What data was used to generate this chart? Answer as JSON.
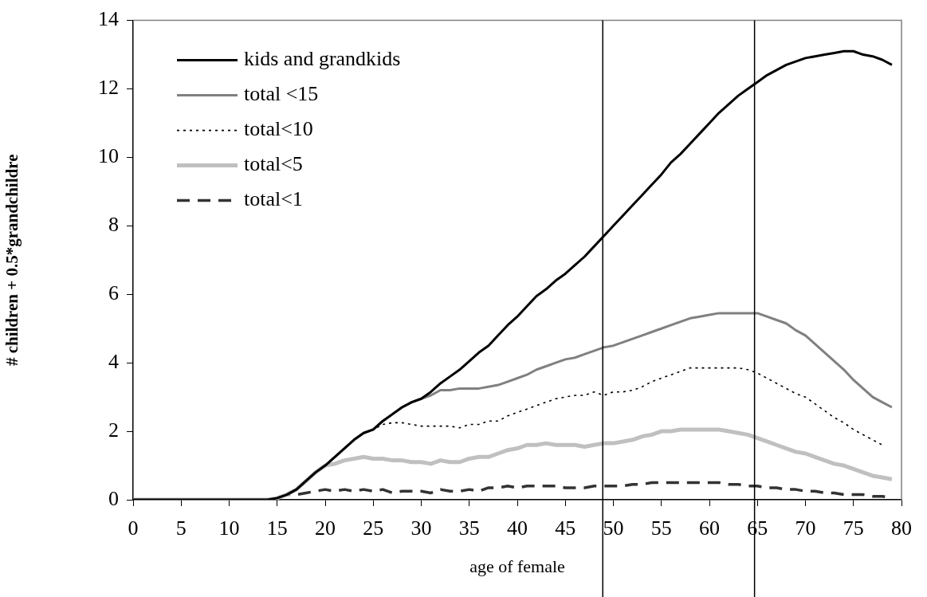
{
  "chart_data": {
    "type": "line",
    "xlabel": "age of female",
    "ylabel": "# children + 0.5*grandchildre",
    "x": [
      0,
      14,
      15,
      16,
      17,
      18,
      19,
      20,
      21,
      22,
      23,
      24,
      25,
      26,
      27,
      28,
      29,
      30,
      31,
      32,
      33,
      34,
      35,
      36,
      37,
      38,
      39,
      40,
      41,
      42,
      43,
      44,
      45,
      46,
      47,
      48,
      49,
      50,
      51,
      52,
      53,
      54,
      55,
      56,
      57,
      58,
      59,
      60,
      61,
      62,
      63,
      64,
      65,
      66,
      67,
      68,
      69,
      70,
      71,
      72,
      73,
      74,
      75,
      76,
      77,
      78,
      79
    ],
    "series": [
      {
        "name": "kids and grandkids",
        "color": "#000000",
        "line_style": "solid",
        "values": [
          0,
          0,
          0.05,
          0.15,
          0.3,
          0.55,
          0.8,
          1.0,
          1.25,
          1.5,
          1.75,
          1.95,
          2.05,
          2.3,
          2.5,
          2.7,
          2.85,
          2.95,
          3.15,
          3.4,
          3.6,
          3.8,
          4.05,
          4.3,
          4.5,
          4.8,
          5.1,
          5.35,
          5.65,
          5.95,
          6.15,
          6.4,
          6.6,
          6.85,
          7.1,
          7.4,
          7.7,
          8.0,
          8.3,
          8.6,
          8.9,
          9.2,
          9.5,
          9.85,
          10.1,
          10.4,
          10.7,
          11.0,
          11.3,
          11.55,
          11.8,
          12.0,
          12.2,
          12.4,
          12.55,
          12.7,
          12.8,
          12.9,
          12.95,
          13.0,
          13.05,
          13.1,
          13.1,
          13.0,
          12.95,
          12.85,
          12.7
        ]
      },
      {
        "name": "total <15",
        "color": "#808080",
        "line_style": "solid",
        "values": [
          0,
          0,
          0.05,
          0.15,
          0.3,
          0.55,
          0.8,
          1.0,
          1.25,
          1.5,
          1.75,
          1.95,
          2.05,
          2.3,
          2.5,
          2.7,
          2.85,
          2.95,
          3.05,
          3.2,
          3.2,
          3.25,
          3.25,
          3.25,
          3.3,
          3.35,
          3.45,
          3.55,
          3.65,
          3.8,
          3.9,
          4.0,
          4.1,
          4.15,
          4.25,
          4.35,
          4.45,
          4.5,
          4.6,
          4.7,
          4.8,
          4.9,
          5.0,
          5.1,
          5.2,
          5.3,
          5.35,
          5.4,
          5.45,
          5.45,
          5.45,
          5.45,
          5.45,
          5.35,
          5.25,
          5.15,
          4.95,
          4.8,
          4.55,
          4.3,
          4.05,
          3.8,
          3.5,
          3.25,
          3.0,
          2.85,
          2.7
        ]
      },
      {
        "name": "total<10",
        "color": "#000000",
        "line_style": "dotted",
        "values": [
          0,
          0,
          0.05,
          0.15,
          0.3,
          0.55,
          0.8,
          1.0,
          1.25,
          1.5,
          1.75,
          1.95,
          2.05,
          2.2,
          2.25,
          2.25,
          2.2,
          2.15,
          2.15,
          2.15,
          2.15,
          2.1,
          2.2,
          2.2,
          2.3,
          2.3,
          2.45,
          2.55,
          2.65,
          2.75,
          2.85,
          2.95,
          3.0,
          3.05,
          3.05,
          3.15,
          3.05,
          3.15,
          3.15,
          3.2,
          3.3,
          3.45,
          3.55,
          3.65,
          3.75,
          3.85,
          3.85,
          3.85,
          3.85,
          3.85,
          3.85,
          3.8,
          3.7,
          3.55,
          3.4,
          3.25,
          3.1,
          3.0,
          2.8,
          2.6,
          2.4,
          2.25,
          2.05,
          1.9,
          1.75,
          1.6,
          null
        ]
      },
      {
        "name": "total<5",
        "color": "#c0c0c0",
        "line_style": "solid",
        "values": [
          0,
          0,
          0.05,
          0.15,
          0.3,
          0.55,
          0.8,
          1.0,
          1.05,
          1.15,
          1.2,
          1.25,
          1.2,
          1.2,
          1.15,
          1.15,
          1.1,
          1.1,
          1.05,
          1.15,
          1.1,
          1.1,
          1.2,
          1.25,
          1.25,
          1.35,
          1.45,
          1.5,
          1.6,
          1.6,
          1.65,
          1.6,
          1.6,
          1.6,
          1.55,
          1.6,
          1.65,
          1.65,
          1.7,
          1.75,
          1.85,
          1.9,
          2.0,
          2.0,
          2.05,
          2.05,
          2.05,
          2.05,
          2.05,
          2.0,
          1.95,
          1.9,
          1.8,
          1.7,
          1.6,
          1.5,
          1.4,
          1.35,
          1.25,
          1.15,
          1.05,
          1.0,
          0.9,
          0.8,
          0.7,
          0.65,
          0.6
        ]
      },
      {
        "name": "total<1",
        "color": "#333333",
        "line_style": "dashed",
        "values": [
          0,
          0,
          0.05,
          0.15,
          0.15,
          0.2,
          0.25,
          0.3,
          0.25,
          0.3,
          0.25,
          0.3,
          0.25,
          0.3,
          0.2,
          0.25,
          0.25,
          0.25,
          0.2,
          0.3,
          0.25,
          0.25,
          0.3,
          0.25,
          0.35,
          0.35,
          0.4,
          0.35,
          0.4,
          0.4,
          0.4,
          0.4,
          0.35,
          0.35,
          0.35,
          0.4,
          0.4,
          0.4,
          0.4,
          0.45,
          0.45,
          0.5,
          0.5,
          0.5,
          0.5,
          0.5,
          0.5,
          0.5,
          0.5,
          0.45,
          0.45,
          0.4,
          0.4,
          0.35,
          0.35,
          0.3,
          0.3,
          0.25,
          0.25,
          0.2,
          0.2,
          0.15,
          0.15,
          0.15,
          0.1,
          0.1,
          0.05
        ]
      }
    ],
    "xlim": [
      0,
      80
    ],
    "xticks": [
      0,
      5,
      10,
      15,
      20,
      25,
      30,
      35,
      40,
      45,
      50,
      55,
      60,
      65,
      70,
      75,
      80
    ],
    "ylim": [
      0,
      14
    ],
    "yticks": [
      0,
      2,
      4,
      6,
      8,
      10,
      12,
      14
    ],
    "ref_lines": [
      {
        "axis": "x",
        "value": 48.9,
        "color": "#000000"
      },
      {
        "axis": "x",
        "value": 64.7,
        "color": "#000000"
      }
    ],
    "grid": false,
    "legend": "top left",
    "marker": "none"
  }
}
